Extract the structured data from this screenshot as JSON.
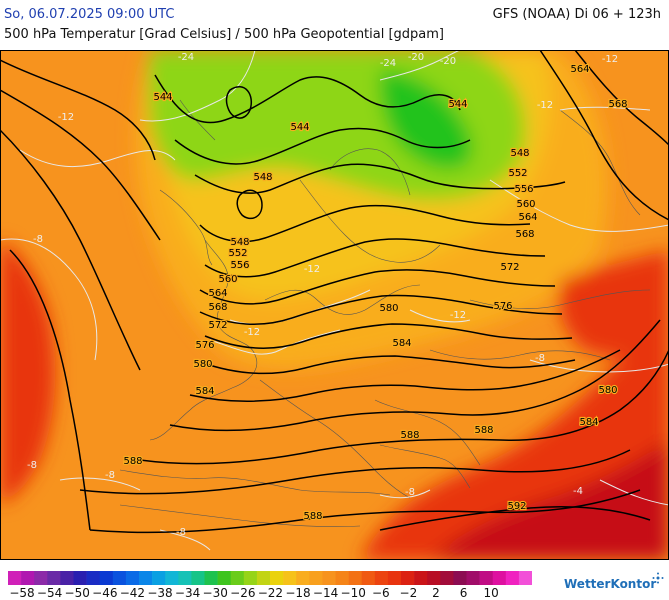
{
  "header": {
    "datetime": "So, 06.07.2025 09:00 UTC",
    "model_run": "GFS (NOAA) Di 06 + 123h",
    "subtitle": "500 hPa Temperatur [Grad Celsius] / 500 hPa Geopotential [gdpam]"
  },
  "map": {
    "geopotential_labels": [
      "544",
      "544",
      "544",
      "548",
      "548",
      "548",
      "552",
      "552",
      "556",
      "556",
      "560",
      "560",
      "564",
      "564",
      "564",
      "568",
      "568",
      "568",
      "572",
      "572",
      "576",
      "576",
      "580",
      "580",
      "580",
      "584",
      "584",
      "584",
      "588",
      "588",
      "588",
      "588",
      "592"
    ],
    "temperature_labels": [
      "-24",
      "-24",
      "-20",
      "-20",
      "-12",
      "-12",
      "-12",
      "-12",
      "-12",
      "-12",
      "-8",
      "-8",
      "-8",
      "-8",
      "-8",
      "-8",
      "-4"
    ],
    "colors": {
      "field_orange": "#f7931e",
      "field_light_orange": "#f9ad1f",
      "field_yellow": "#f6c21a",
      "field_lime": "#8ed616",
      "field_green": "#22c31e",
      "field_red": "#e8340f",
      "field_darkred": "#c61018",
      "isohypse": "#000000",
      "isotherm": "#e8e8e8",
      "coastline": "#555555"
    }
  },
  "legend": {
    "labels": [
      "−58",
      "−54",
      "−50",
      "−46",
      "−42",
      "−38",
      "−34",
      "−30",
      "−26",
      "−22",
      "−18",
      "−14",
      "−10",
      "−6",
      "−2",
      "2",
      "6",
      "10"
    ],
    "colors": [
      "#d020b8",
      "#b018b0",
      "#8c2aa8",
      "#6a2aa6",
      "#4a22a6",
      "#2a1fb0",
      "#1a2cc4",
      "#0a3ad2",
      "#0a52de",
      "#0a6ae6",
      "#0a86e8",
      "#0aa0e2",
      "#12b6d6",
      "#16c2b6",
      "#16c488",
      "#1ec24e",
      "#3ec41e",
      "#6acc1a",
      "#96d418",
      "#c2d414",
      "#ead20e",
      "#f6c21a",
      "#f9ad1f",
      "#f8a01e",
      "#f7931e",
      "#f58418",
      "#f37114",
      "#f05a12",
      "#ec4410",
      "#e8340f",
      "#dc2212",
      "#ca1418",
      "#b80e24",
      "#a20c3a",
      "#8c0c52",
      "#a00c68",
      "#c00c84",
      "#de10a0",
      "#f022c0",
      "#f250d8"
    ]
  },
  "brand": {
    "name": "WetterKontor"
  }
}
